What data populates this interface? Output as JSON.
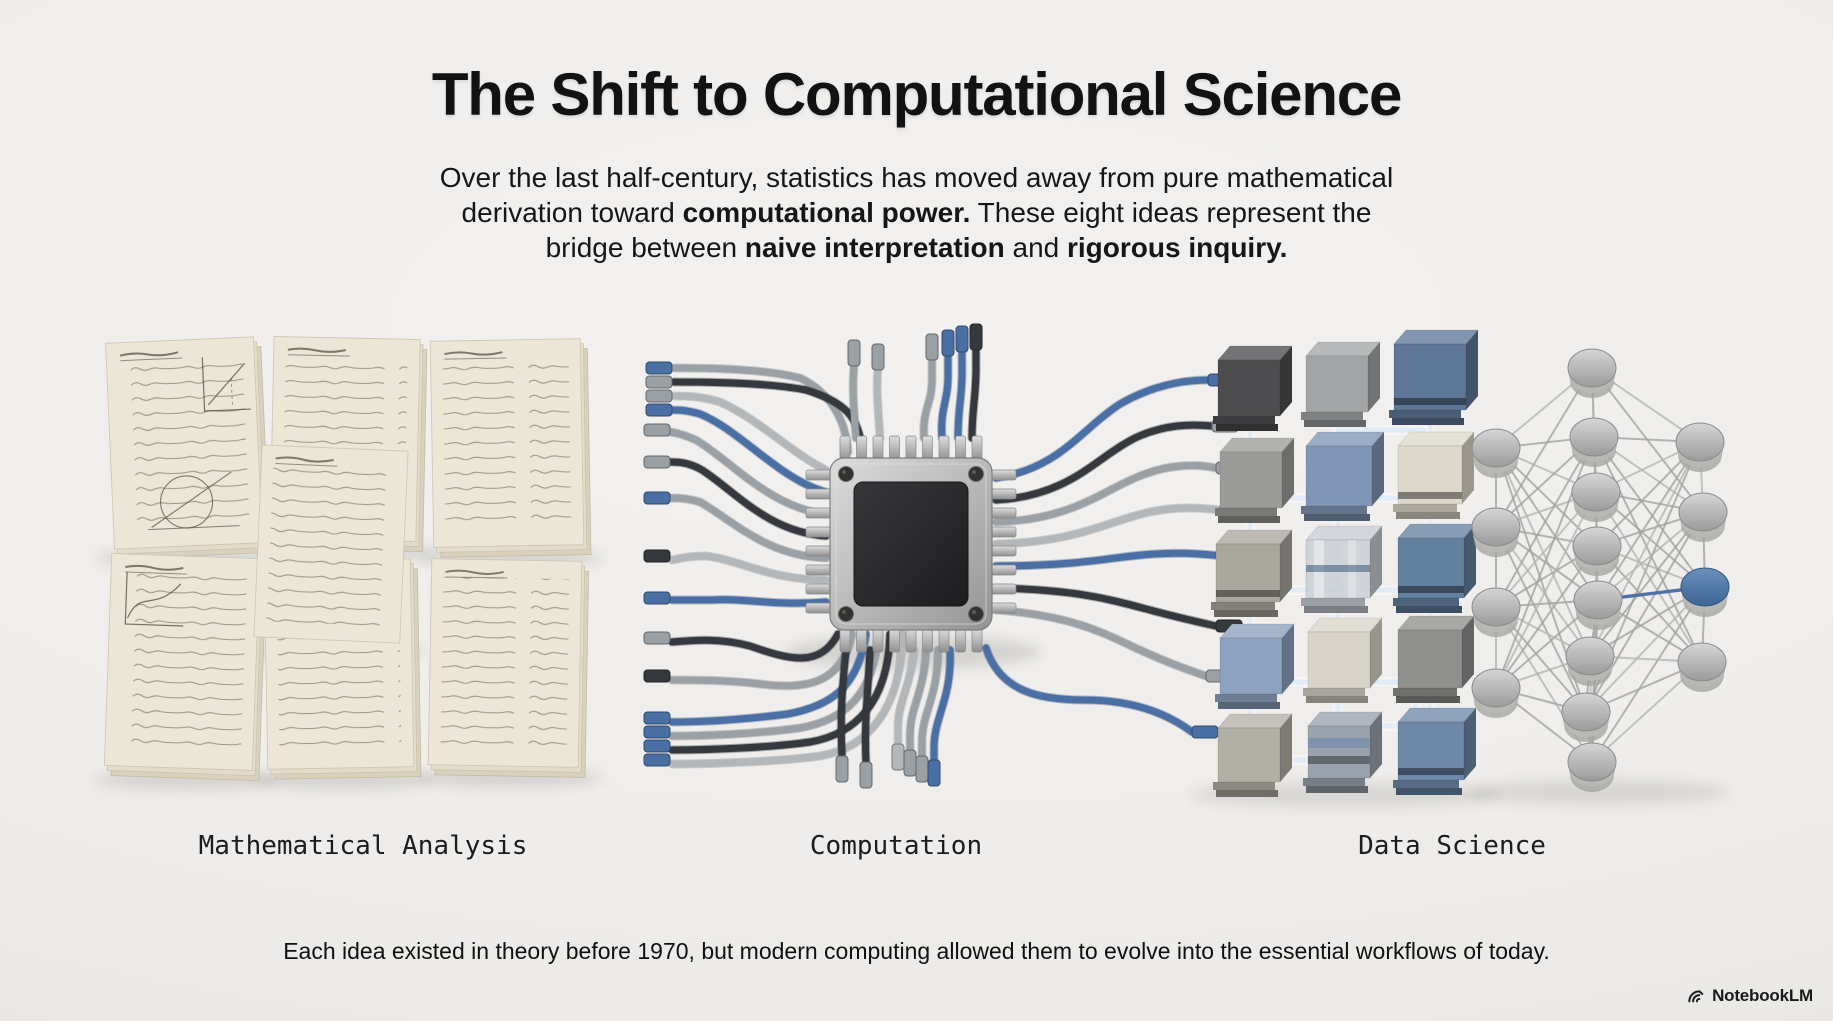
{
  "header": {
    "title": "The Shift to Computational Science",
    "subtitle": {
      "l1": "Over the last half-century, statistics has moved away from pure mathematical",
      "l2_pre": "derivation toward ",
      "l2_bold": "computational power.",
      "l2_post": " These eight ideas represent the",
      "l3_pre": "bridge between ",
      "l3_bold1": "naive interpretation",
      "l3_mid": " and ",
      "l3_bold2": "rigorous inquiry."
    }
  },
  "sections": {
    "left_label": "Mathematical Analysis",
    "middle_label": "Computation",
    "right_label": "Data Science"
  },
  "footer": {
    "caption": "Each idea existed in theory before 1970, but modern computing allowed them to evolve into the essential workflows of today.",
    "brand": "NotebookLM"
  },
  "palette": {
    "background": "#efedeb",
    "text": "#141414",
    "accent_blue": "#4a6fa5",
    "wire_gray": "#9aa0a4",
    "wire_dark": "#35383c",
    "wire_light": "#b3b7ba",
    "paper": "#ece6d7",
    "ink": "#6b604e",
    "chip_core": "#2a2a2b",
    "connector_glow": "#dfebf7",
    "node_gray": "#c0c0c0"
  }
}
